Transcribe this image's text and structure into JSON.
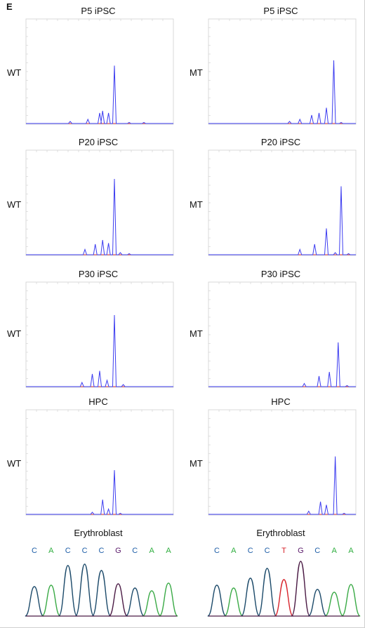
{
  "panel_letter": "E",
  "genotype_labels": {
    "wt": "WT",
    "mt": "MT"
  },
  "rows": [
    {
      "left_title": "P5 iPSC",
      "right_title": "P5 iPSC"
    },
    {
      "left_title": "P20 iPSC",
      "right_title": "P20 iPSC"
    },
    {
      "left_title": "P30 iPSC",
      "right_title": "P30 iPSC"
    },
    {
      "left_title": "HPC",
      "right_title": "HPC"
    }
  ],
  "erythroblast": {
    "left_title": "Erythroblast",
    "right_title": "Erythroblast",
    "left_bases": [
      "C",
      "A",
      "C",
      "C",
      "C",
      "G",
      "C",
      "A",
      "A"
    ],
    "right_bases": [
      "C",
      "A",
      "C",
      "C",
      "T",
      "G",
      "C",
      "A",
      "A"
    ]
  },
  "colors": {
    "trace": "#3d3df0",
    "baseline": "#e23a3a",
    "base_C": "#1f5fa8",
    "base_A": "#2fae3f",
    "base_G": "#5a1a6a",
    "base_T": "#d8242c",
    "chrom_C": "#1c4a6a",
    "chrom_A": "#3aaa46",
    "chrom_G": "#4a1a44",
    "chrom_T": "#d8242c"
  },
  "chart_data": [
    {
      "type": "line",
      "title": "P5 iPSC",
      "series": [
        {
          "name": "WT",
          "x": [
            0.3,
            0.42,
            0.5,
            0.52,
            0.56,
            0.6,
            0.7,
            0.8
          ],
          "values": [
            0.02,
            0.04,
            0.1,
            0.12,
            0.1,
            0.55,
            0.01,
            0.01
          ]
        }
      ]
    },
    {
      "type": "line",
      "title": "P5 iPSC",
      "series": [
        {
          "name": "MT",
          "x": [
            0.55,
            0.62,
            0.7,
            0.75,
            0.8,
            0.85,
            0.9
          ],
          "values": [
            0.02,
            0.04,
            0.08,
            0.1,
            0.15,
            0.6,
            0.01
          ]
        }
      ]
    },
    {
      "type": "line",
      "title": "P20 iPSC",
      "series": [
        {
          "name": "WT",
          "x": [
            0.4,
            0.47,
            0.52,
            0.56,
            0.6,
            0.64,
            0.7
          ],
          "values": [
            0.05,
            0.1,
            0.14,
            0.11,
            0.72,
            0.02,
            0.01
          ]
        }
      ]
    },
    {
      "type": "line",
      "title": "P20 iPSC",
      "series": [
        {
          "name": "MT",
          "x": [
            0.62,
            0.72,
            0.8,
            0.86,
            0.9,
            0.95
          ],
          "values": [
            0.05,
            0.1,
            0.25,
            0.02,
            0.65,
            0.01
          ]
        }
      ]
    },
    {
      "type": "line",
      "title": "P30 iPSC",
      "series": [
        {
          "name": "WT",
          "x": [
            0.38,
            0.45,
            0.5,
            0.55,
            0.6,
            0.66
          ],
          "values": [
            0.04,
            0.12,
            0.15,
            0.06,
            0.68,
            0.02
          ]
        }
      ]
    },
    {
      "type": "line",
      "title": "P30 iPSC",
      "series": [
        {
          "name": "MT",
          "x": [
            0.65,
            0.75,
            0.82,
            0.88,
            0.94
          ],
          "values": [
            0.03,
            0.1,
            0.14,
            0.42,
            0.01
          ]
        }
      ]
    },
    {
      "type": "line",
      "title": "HPC",
      "series": [
        {
          "name": "WT",
          "x": [
            0.45,
            0.52,
            0.56,
            0.6,
            0.64
          ],
          "values": [
            0.02,
            0.14,
            0.05,
            0.42,
            0.01
          ]
        }
      ]
    },
    {
      "type": "line",
      "title": "HPC",
      "series": [
        {
          "name": "MT",
          "x": [
            0.68,
            0.76,
            0.8,
            0.86,
            0.92
          ],
          "values": [
            0.03,
            0.12,
            0.09,
            0.55,
            0.01
          ]
        }
      ]
    }
  ]
}
